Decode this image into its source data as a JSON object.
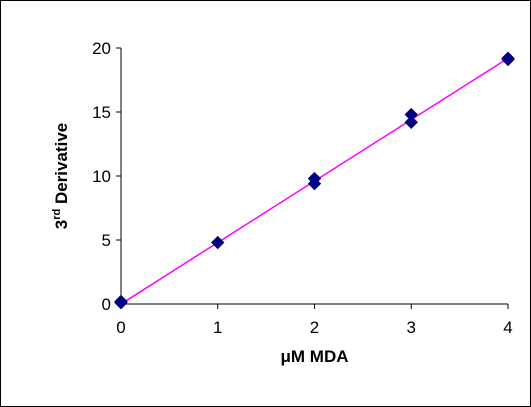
{
  "chart_data": {
    "type": "scatter",
    "xlabel": "μM MDA",
    "ylabel_main": "3",
    "ylabel_sup": "rd",
    "ylabel_rest": " Derivative",
    "xlim": [
      0,
      4
    ],
    "ylim": [
      0,
      20
    ],
    "xticks": [
      0,
      1,
      2,
      3,
      4
    ],
    "yticks": [
      0,
      5,
      10,
      15,
      20
    ],
    "grid": false,
    "legend": "none",
    "series": [
      {
        "x": [
          0,
          0,
          1,
          2,
          2,
          3,
          3,
          4,
          4
        ],
        "y": [
          0.2,
          0.1,
          4.8,
          9.8,
          9.4,
          14.8,
          14.2,
          19.2,
          19.1
        ],
        "marker": "diamond",
        "color": "#000080"
      }
    ],
    "trendline": {
      "x": [
        0,
        4
      ],
      "y": [
        0,
        19.2
      ],
      "color": "#ff00ff"
    }
  }
}
